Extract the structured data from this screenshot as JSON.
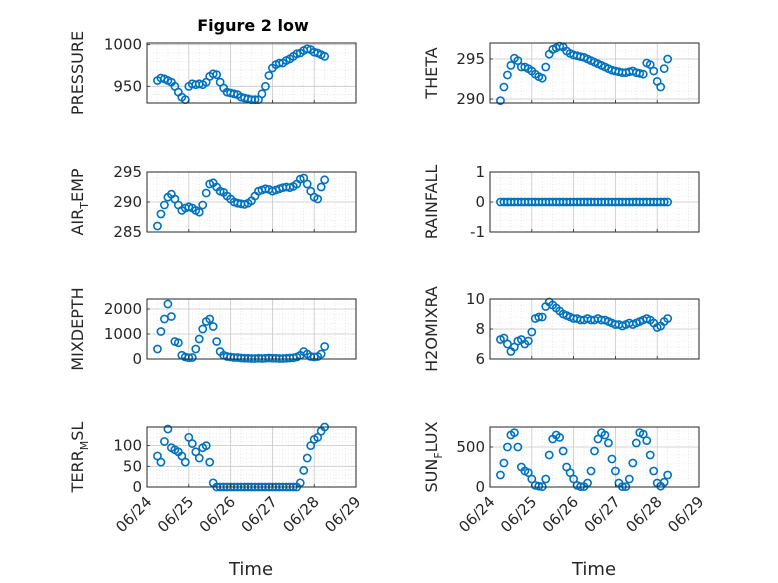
{
  "figure": {
    "title": "Figure 2 low",
    "marker_color": "#0072BD",
    "x_tick_labels": [
      "06/24",
      "06/25",
      "06/26",
      "06/27",
      "06/28",
      "06/29"
    ],
    "xlabel": "Time"
  },
  "chart_data": [
    {
      "type": "scatter",
      "ylabel": "PRESSURE",
      "x_range": [
        "06/24",
        "06/29"
      ],
      "ylim": [
        930,
        1002
      ],
      "yticks": [
        950,
        1000
      ],
      "grid": true,
      "x": [
        "06/24 06:00",
        "06/24 08:00",
        "06/24 10:00",
        "06/24 12:00",
        "06/24 14:00",
        "06/24 16:00",
        "06/24 18:00",
        "06/24 20:00",
        "06/24 22:00",
        "06/25 00:00",
        "06/25 02:00",
        "06/25 04:00",
        "06/25 06:00",
        "06/25 08:00",
        "06/25 10:00",
        "06/25 12:00",
        "06/25 14:00",
        "06/25 16:00",
        "06/25 18:00",
        "06/25 20:00",
        "06/25 22:00",
        "06/26 00:00",
        "06/26 02:00",
        "06/26 04:00",
        "06/26 06:00",
        "06/26 08:00",
        "06/26 10:00",
        "06/26 12:00",
        "06/26 14:00",
        "06/26 16:00",
        "06/26 18:00",
        "06/26 20:00",
        "06/26 22:00",
        "06/27 00:00",
        "06/27 02:00",
        "06/27 04:00",
        "06/27 06:00",
        "06/27 08:00",
        "06/27 10:00",
        "06/27 12:00",
        "06/27 14:00",
        "06/27 16:00",
        "06/27 18:00",
        "06/27 20:00",
        "06/27 22:00",
        "06/28 00:00",
        "06/28 02:00",
        "06/28 04:00",
        "06/28 06:00"
      ],
      "y": [
        957,
        960,
        959,
        957,
        955,
        950,
        943,
        937,
        934,
        950,
        953,
        952,
        953,
        952,
        955,
        962,
        965,
        964,
        955,
        948,
        943,
        942,
        941,
        940,
        937,
        936,
        935,
        934,
        934,
        934,
        941,
        950,
        963,
        972,
        976,
        978,
        978,
        981,
        983,
        986,
        989,
        990,
        993,
        995,
        994,
        991,
        990,
        988,
        986
      ]
    },
    {
      "type": "scatter",
      "ylabel": "THETA",
      "x_range": [
        "06/24",
        "06/29"
      ],
      "ylim": [
        289.5,
        297
      ],
      "yticks": [
        290,
        295
      ],
      "grid": true,
      "x": [
        "06/24 06:00",
        "06/24 08:00",
        "06/24 10:00",
        "06/24 12:00",
        "06/24 14:00",
        "06/24 16:00",
        "06/24 18:00",
        "06/24 20:00",
        "06/24 22:00",
        "06/25 00:00",
        "06/25 02:00",
        "06/25 04:00",
        "06/25 06:00",
        "06/25 08:00",
        "06/25 10:00",
        "06/25 12:00",
        "06/25 14:00",
        "06/25 16:00",
        "06/25 18:00",
        "06/25 20:00",
        "06/25 22:00",
        "06/26 00:00",
        "06/26 02:00",
        "06/26 04:00",
        "06/26 06:00",
        "06/26 08:00",
        "06/26 10:00",
        "06/26 12:00",
        "06/26 14:00",
        "06/26 16:00",
        "06/26 18:00",
        "06/26 20:00",
        "06/26 22:00",
        "06/27 00:00",
        "06/27 02:00",
        "06/27 04:00",
        "06/27 06:00",
        "06/27 08:00",
        "06/27 10:00",
        "06/27 12:00",
        "06/27 14:00",
        "06/27 16:00",
        "06/27 18:00",
        "06/27 20:00",
        "06/27 22:00",
        "06/28 00:00",
        "06/28 02:00",
        "06/28 04:00",
        "06/28 06:00"
      ],
      "y": [
        289.8,
        291.5,
        293.0,
        294.2,
        295.1,
        294.8,
        294.0,
        294.0,
        293.8,
        293.5,
        293.1,
        292.8,
        292.6,
        294.0,
        295.6,
        296.2,
        296.4,
        296.6,
        296.5,
        296.0,
        295.7,
        295.5,
        295.4,
        295.3,
        295.2,
        295.0,
        294.8,
        294.6,
        294.4,
        294.2,
        294.0,
        293.8,
        293.6,
        293.5,
        293.4,
        293.3,
        293.3,
        293.4,
        293.5,
        293.3,
        293.2,
        293.1,
        294.5,
        294.3,
        293.5,
        292.2,
        291.5,
        293.8,
        295.0
      ]
    },
    {
      "type": "scatter",
      "ylabel": "AIR_TEMP",
      "x_range": [
        "06/24",
        "06/29"
      ],
      "ylim": [
        285,
        295
      ],
      "yticks": [
        285,
        290,
        295
      ],
      "grid": true,
      "x": [
        "06/24 06:00",
        "06/24 08:00",
        "06/24 10:00",
        "06/24 12:00",
        "06/24 14:00",
        "06/24 16:00",
        "06/24 18:00",
        "06/24 20:00",
        "06/24 22:00",
        "06/25 00:00",
        "06/25 02:00",
        "06/25 04:00",
        "06/25 06:00",
        "06/25 08:00",
        "06/25 10:00",
        "06/25 12:00",
        "06/25 14:00",
        "06/25 16:00",
        "06/25 18:00",
        "06/25 20:00",
        "06/25 22:00",
        "06/26 00:00",
        "06/26 02:00",
        "06/26 04:00",
        "06/26 06:00",
        "06/26 08:00",
        "06/26 10:00",
        "06/26 12:00",
        "06/26 14:00",
        "06/26 16:00",
        "06/26 18:00",
        "06/26 20:00",
        "06/26 22:00",
        "06/27 00:00",
        "06/27 02:00",
        "06/27 04:00",
        "06/27 06:00",
        "06/27 08:00",
        "06/27 10:00",
        "06/27 12:00",
        "06/27 14:00",
        "06/27 16:00",
        "06/27 18:00",
        "06/27 20:00",
        "06/27 22:00",
        "06/28 00:00",
        "06/28 02:00",
        "06/28 04:00",
        "06/28 06:00"
      ],
      "y": [
        286.0,
        288.0,
        289.5,
        290.8,
        291.3,
        290.5,
        289.5,
        288.6,
        289.0,
        289.2,
        289.0,
        288.6,
        288.3,
        289.5,
        291.5,
        293.0,
        293.2,
        292.5,
        291.8,
        291.6,
        291.0,
        290.5,
        290.0,
        289.8,
        289.7,
        289.6,
        289.8,
        290.2,
        291.0,
        291.8,
        292.0,
        292.2,
        292.1,
        291.8,
        292.0,
        292.2,
        292.4,
        292.5,
        292.4,
        292.6,
        293.0,
        293.8,
        294.0,
        293.0,
        291.8,
        290.8,
        290.5,
        292.5,
        293.7
      ]
    },
    {
      "type": "scatter",
      "ylabel": "RAINFALL",
      "x_range": [
        "06/24",
        "06/29"
      ],
      "ylim": [
        -1,
        1
      ],
      "yticks": [
        -1,
        0,
        1
      ],
      "grid": true,
      "x": [
        "06/24 06:00",
        "06/24 08:00",
        "06/24 10:00",
        "06/24 12:00",
        "06/24 14:00",
        "06/24 16:00",
        "06/24 18:00",
        "06/24 20:00",
        "06/24 22:00",
        "06/25 00:00",
        "06/25 02:00",
        "06/25 04:00",
        "06/25 06:00",
        "06/25 08:00",
        "06/25 10:00",
        "06/25 12:00",
        "06/25 14:00",
        "06/25 16:00",
        "06/25 18:00",
        "06/25 20:00",
        "06/25 22:00",
        "06/26 00:00",
        "06/26 02:00",
        "06/26 04:00",
        "06/26 06:00",
        "06/26 08:00",
        "06/26 10:00",
        "06/26 12:00",
        "06/26 14:00",
        "06/26 16:00",
        "06/26 18:00",
        "06/26 20:00",
        "06/26 22:00",
        "06/27 00:00",
        "06/27 02:00",
        "06/27 04:00",
        "06/27 06:00",
        "06/27 08:00",
        "06/27 10:00",
        "06/27 12:00",
        "06/27 14:00",
        "06/27 16:00",
        "06/27 18:00",
        "06/27 20:00",
        "06/27 22:00",
        "06/28 00:00",
        "06/28 02:00",
        "06/28 04:00",
        "06/28 06:00"
      ],
      "y": [
        0,
        0,
        0,
        0,
        0,
        0,
        0,
        0,
        0,
        0,
        0,
        0,
        0,
        0,
        0,
        0,
        0,
        0,
        0,
        0,
        0,
        0,
        0,
        0,
        0,
        0,
        0,
        0,
        0,
        0,
        0,
        0,
        0,
        0,
        0,
        0,
        0,
        0,
        0,
        0,
        0,
        0,
        0,
        0,
        0,
        0,
        0,
        0,
        0
      ]
    },
    {
      "type": "scatter",
      "ylabel": "MIXDEPTH",
      "x_range": [
        "06/24",
        "06/29"
      ],
      "ylim": [
        0,
        2400
      ],
      "yticks": [
        0,
        1000,
        2000
      ],
      "grid": true,
      "x": [
        "06/24 06:00",
        "06/24 08:00",
        "06/24 10:00",
        "06/24 12:00",
        "06/24 14:00",
        "06/24 16:00",
        "06/24 18:00",
        "06/24 20:00",
        "06/24 22:00",
        "06/25 00:00",
        "06/25 02:00",
        "06/25 04:00",
        "06/25 06:00",
        "06/25 08:00",
        "06/25 10:00",
        "06/25 12:00",
        "06/25 14:00",
        "06/25 16:00",
        "06/25 18:00",
        "06/25 20:00",
        "06/25 22:00",
        "06/26 00:00",
        "06/26 02:00",
        "06/26 04:00",
        "06/26 06:00",
        "06/26 08:00",
        "06/26 10:00",
        "06/26 12:00",
        "06/26 14:00",
        "06/26 16:00",
        "06/26 18:00",
        "06/26 20:00",
        "06/26 22:00",
        "06/27 00:00",
        "06/27 02:00",
        "06/27 04:00",
        "06/27 06:00",
        "06/27 08:00",
        "06/27 10:00",
        "06/27 12:00",
        "06/27 14:00",
        "06/27 16:00",
        "06/27 18:00",
        "06/27 20:00",
        "06/27 22:00",
        "06/28 00:00",
        "06/28 02:00",
        "06/28 04:00",
        "06/28 06:00"
      ],
      "y": [
        400,
        1100,
        1600,
        2200,
        1700,
        700,
        650,
        150,
        80,
        50,
        60,
        400,
        800,
        1200,
        1500,
        1600,
        1300,
        700,
        300,
        150,
        100,
        80,
        60,
        60,
        40,
        30,
        30,
        20,
        20,
        30,
        20,
        30,
        40,
        30,
        30,
        20,
        20,
        30,
        40,
        50,
        80,
        150,
        300,
        200,
        100,
        80,
        100,
        200,
        500
      ]
    },
    {
      "type": "scatter",
      "ylabel": "H2OMIXRA",
      "x_range": [
        "06/24",
        "06/29"
      ],
      "ylim": [
        6,
        10
      ],
      "yticks": [
        6,
        8,
        10
      ],
      "grid": true,
      "x": [
        "06/24 06:00",
        "06/24 08:00",
        "06/24 10:00",
        "06/24 12:00",
        "06/24 14:00",
        "06/24 16:00",
        "06/24 18:00",
        "06/24 20:00",
        "06/24 22:00",
        "06/25 00:00",
        "06/25 02:00",
        "06/25 04:00",
        "06/25 06:00",
        "06/25 08:00",
        "06/25 10:00",
        "06/25 12:00",
        "06/25 14:00",
        "06/25 16:00",
        "06/25 18:00",
        "06/25 20:00",
        "06/25 22:00",
        "06/26 00:00",
        "06/26 02:00",
        "06/26 04:00",
        "06/26 06:00",
        "06/26 08:00",
        "06/26 10:00",
        "06/26 12:00",
        "06/26 14:00",
        "06/26 16:00",
        "06/26 18:00",
        "06/26 20:00",
        "06/26 22:00",
        "06/27 00:00",
        "06/27 02:00",
        "06/27 04:00",
        "06/27 06:00",
        "06/27 08:00",
        "06/27 10:00",
        "06/27 12:00",
        "06/27 14:00",
        "06/27 16:00",
        "06/27 18:00",
        "06/27 20:00",
        "06/27 22:00",
        "06/28 00:00",
        "06/28 02:00",
        "06/28 04:00",
        "06/28 06:00"
      ],
      "y": [
        7.3,
        7.4,
        7.0,
        6.5,
        6.8,
        7.2,
        7.3,
        7.0,
        7.2,
        7.8,
        8.7,
        8.8,
        8.8,
        9.5,
        9.8,
        9.6,
        9.4,
        9.2,
        9.0,
        8.9,
        8.8,
        8.7,
        8.7,
        8.6,
        8.6,
        8.7,
        8.6,
        8.6,
        8.7,
        8.6,
        8.6,
        8.5,
        8.4,
        8.3,
        8.3,
        8.2,
        8.3,
        8.4,
        8.3,
        8.4,
        8.5,
        8.6,
        8.7,
        8.6,
        8.4,
        8.1,
        8.2,
        8.5,
        8.7
      ]
    },
    {
      "type": "scatter",
      "ylabel": "TERR_MSL",
      "x_range": [
        "06/24",
        "06/29"
      ],
      "ylim": [
        0,
        145
      ],
      "yticks": [
        0,
        50,
        100
      ],
      "grid": true,
      "x": [
        "06/24 06:00",
        "06/24 08:00",
        "06/24 10:00",
        "06/24 12:00",
        "06/24 14:00",
        "06/24 16:00",
        "06/24 18:00",
        "06/24 20:00",
        "06/24 22:00",
        "06/25 00:00",
        "06/25 02:00",
        "06/25 04:00",
        "06/25 06:00",
        "06/25 08:00",
        "06/25 10:00",
        "06/25 12:00",
        "06/25 14:00",
        "06/25 16:00",
        "06/25 18:00",
        "06/25 20:00",
        "06/25 22:00",
        "06/26 00:00",
        "06/26 02:00",
        "06/26 04:00",
        "06/26 06:00",
        "06/26 08:00",
        "06/26 10:00",
        "06/26 12:00",
        "06/26 14:00",
        "06/26 16:00",
        "06/26 18:00",
        "06/26 20:00",
        "06/26 22:00",
        "06/27 00:00",
        "06/27 02:00",
        "06/27 04:00",
        "06/27 06:00",
        "06/27 08:00",
        "06/27 10:00",
        "06/27 12:00",
        "06/27 14:00",
        "06/27 16:00",
        "06/27 18:00",
        "06/27 20:00",
        "06/27 22:00",
        "06/28 00:00",
        "06/28 02:00",
        "06/28 04:00",
        "06/28 06:00"
      ],
      "y": [
        75,
        60,
        110,
        140,
        95,
        90,
        85,
        75,
        60,
        120,
        105,
        85,
        70,
        95,
        100,
        60,
        10,
        0,
        0,
        0,
        0,
        0,
        0,
        0,
        0,
        0,
        0,
        0,
        0,
        0,
        0,
        0,
        0,
        0,
        0,
        0,
        0,
        0,
        0,
        0,
        0,
        10,
        40,
        70,
        100,
        115,
        120,
        135,
        145
      ]
    },
    {
      "type": "scatter",
      "ylabel": "SUN_FLUX",
      "x_range": [
        "06/24",
        "06/29"
      ],
      "ylim": [
        0,
        750
      ],
      "yticks": [
        0,
        500
      ],
      "grid": true,
      "x": [
        "06/24 06:00",
        "06/24 08:00",
        "06/24 10:00",
        "06/24 12:00",
        "06/24 14:00",
        "06/24 16:00",
        "06/24 18:00",
        "06/24 20:00",
        "06/24 22:00",
        "06/25 00:00",
        "06/25 02:00",
        "06/25 04:00",
        "06/25 06:00",
        "06/25 08:00",
        "06/25 10:00",
        "06/25 12:00",
        "06/25 14:00",
        "06/25 16:00",
        "06/25 18:00",
        "06/25 20:00",
        "06/25 22:00",
        "06/26 00:00",
        "06/26 02:00",
        "06/26 04:00",
        "06/26 06:00",
        "06/26 08:00",
        "06/26 10:00",
        "06/26 12:00",
        "06/26 14:00",
        "06/26 16:00",
        "06/26 18:00",
        "06/26 20:00",
        "06/26 22:00",
        "06/27 00:00",
        "06/27 02:00",
        "06/27 04:00",
        "06/27 06:00",
        "06/27 08:00",
        "06/27 10:00",
        "06/27 12:00",
        "06/27 14:00",
        "06/27 16:00",
        "06/27 18:00",
        "06/27 20:00",
        "06/27 22:00",
        "06/28 00:00",
        "06/28 02:00",
        "06/28 04:00",
        "06/28 06:00"
      ],
      "y": [
        150,
        300,
        500,
        650,
        680,
        500,
        250,
        200,
        180,
        100,
        20,
        10,
        5,
        100,
        400,
        600,
        650,
        620,
        450,
        250,
        180,
        100,
        20,
        5,
        5,
        50,
        200,
        450,
        600,
        680,
        650,
        550,
        350,
        200,
        50,
        5,
        5,
        100,
        300,
        550,
        680,
        660,
        580,
        400,
        200,
        50,
        10,
        60,
        150
      ]
    }
  ]
}
